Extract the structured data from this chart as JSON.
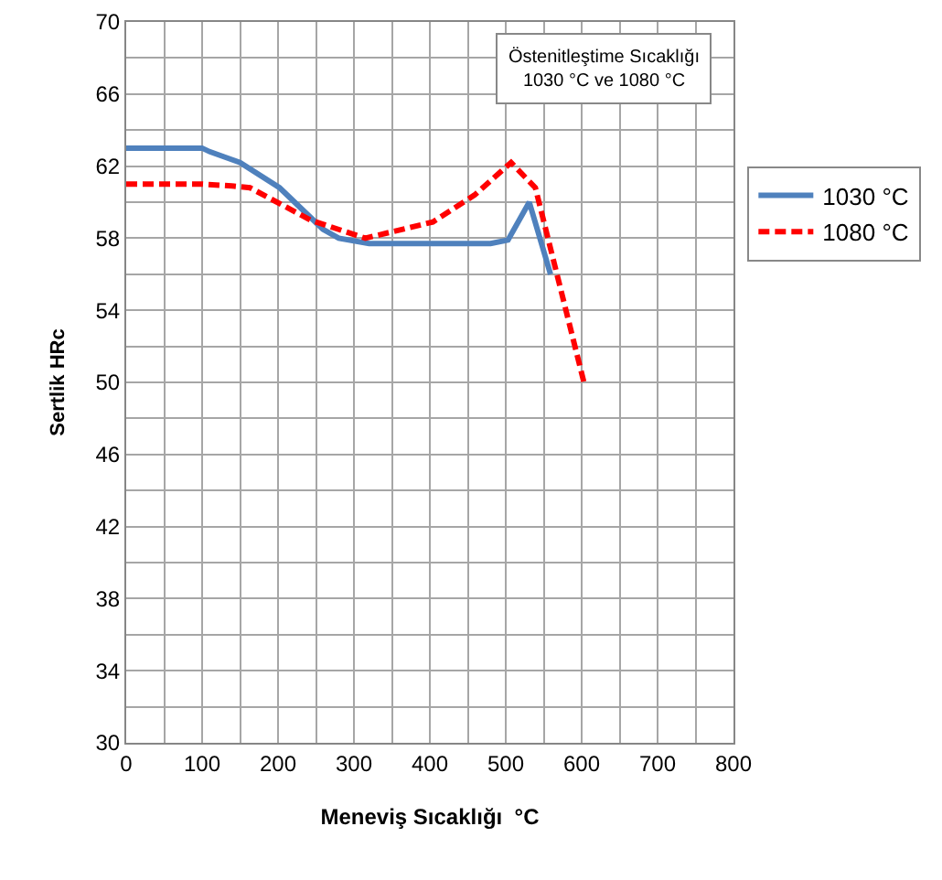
{
  "chart_data": {
    "type": "line",
    "xlabel": "Meneviş Sıcaklığı  °C",
    "ylabel": "Sertlik HRc",
    "annotations": [
      "Östenitleştime Sıcaklığı\n1030 °C ve 1080 °C"
    ],
    "series": [
      {
        "name": "1030 °C",
        "color": "#4f81bd",
        "line_style": "solid",
        "x": [
          0,
          100,
          110,
          130,
          150,
          202,
          259,
          280,
          320,
          400,
          480,
          503,
          531,
          559
        ],
        "values": [
          63,
          63,
          62.8,
          62.5,
          62.2,
          60.8,
          58.5,
          58,
          57.7,
          57.7,
          57.7,
          57.9,
          60,
          56
        ]
      },
      {
        "name": "1080 °C",
        "color": "#ff0000",
        "line_style": "dashed",
        "x": [
          0,
          100,
          139,
          163,
          243,
          315,
          404,
          459,
          507,
          539,
          603
        ],
        "values": [
          61,
          61,
          60.9,
          60.8,
          59,
          58,
          58.9,
          60.4,
          62.2,
          60.8,
          50
        ]
      }
    ],
    "xlim": [
      0,
      800
    ],
    "xticks": [
      0,
      {
        "value": 50,
        "label": null
      },
      100,
      {
        "value": 150,
        "label": null
      },
      200,
      {
        "value": 250,
        "label": null
      },
      300,
      {
        "value": 350,
        "label": null
      },
      400,
      {
        "value": 450,
        "label": null
      },
      500,
      {
        "value": 550,
        "label": null
      },
      600,
      {
        "value": 650,
        "label": null
      },
      700,
      {
        "value": 750,
        "label": null
      },
      800
    ],
    "ylim": [
      30,
      70
    ],
    "yticks": [
      30,
      {
        "value": 32,
        "label": null
      },
      34,
      {
        "value": 36,
        "label": null
      },
      38,
      {
        "value": 40,
        "label": null
      },
      42,
      {
        "value": 44,
        "label": null
      },
      46,
      {
        "value": 48,
        "label": null
      },
      50,
      {
        "value": 52,
        "label": null
      },
      54,
      {
        "value": 56,
        "label": null
      },
      58,
      {
        "value": 60,
        "label": null
      },
      62,
      {
        "value": 64,
        "label": null
      },
      66,
      {
        "value": 68,
        "label": null
      },
      70
    ],
    "grid": true,
    "legend": "right",
    "marker": "none"
  }
}
